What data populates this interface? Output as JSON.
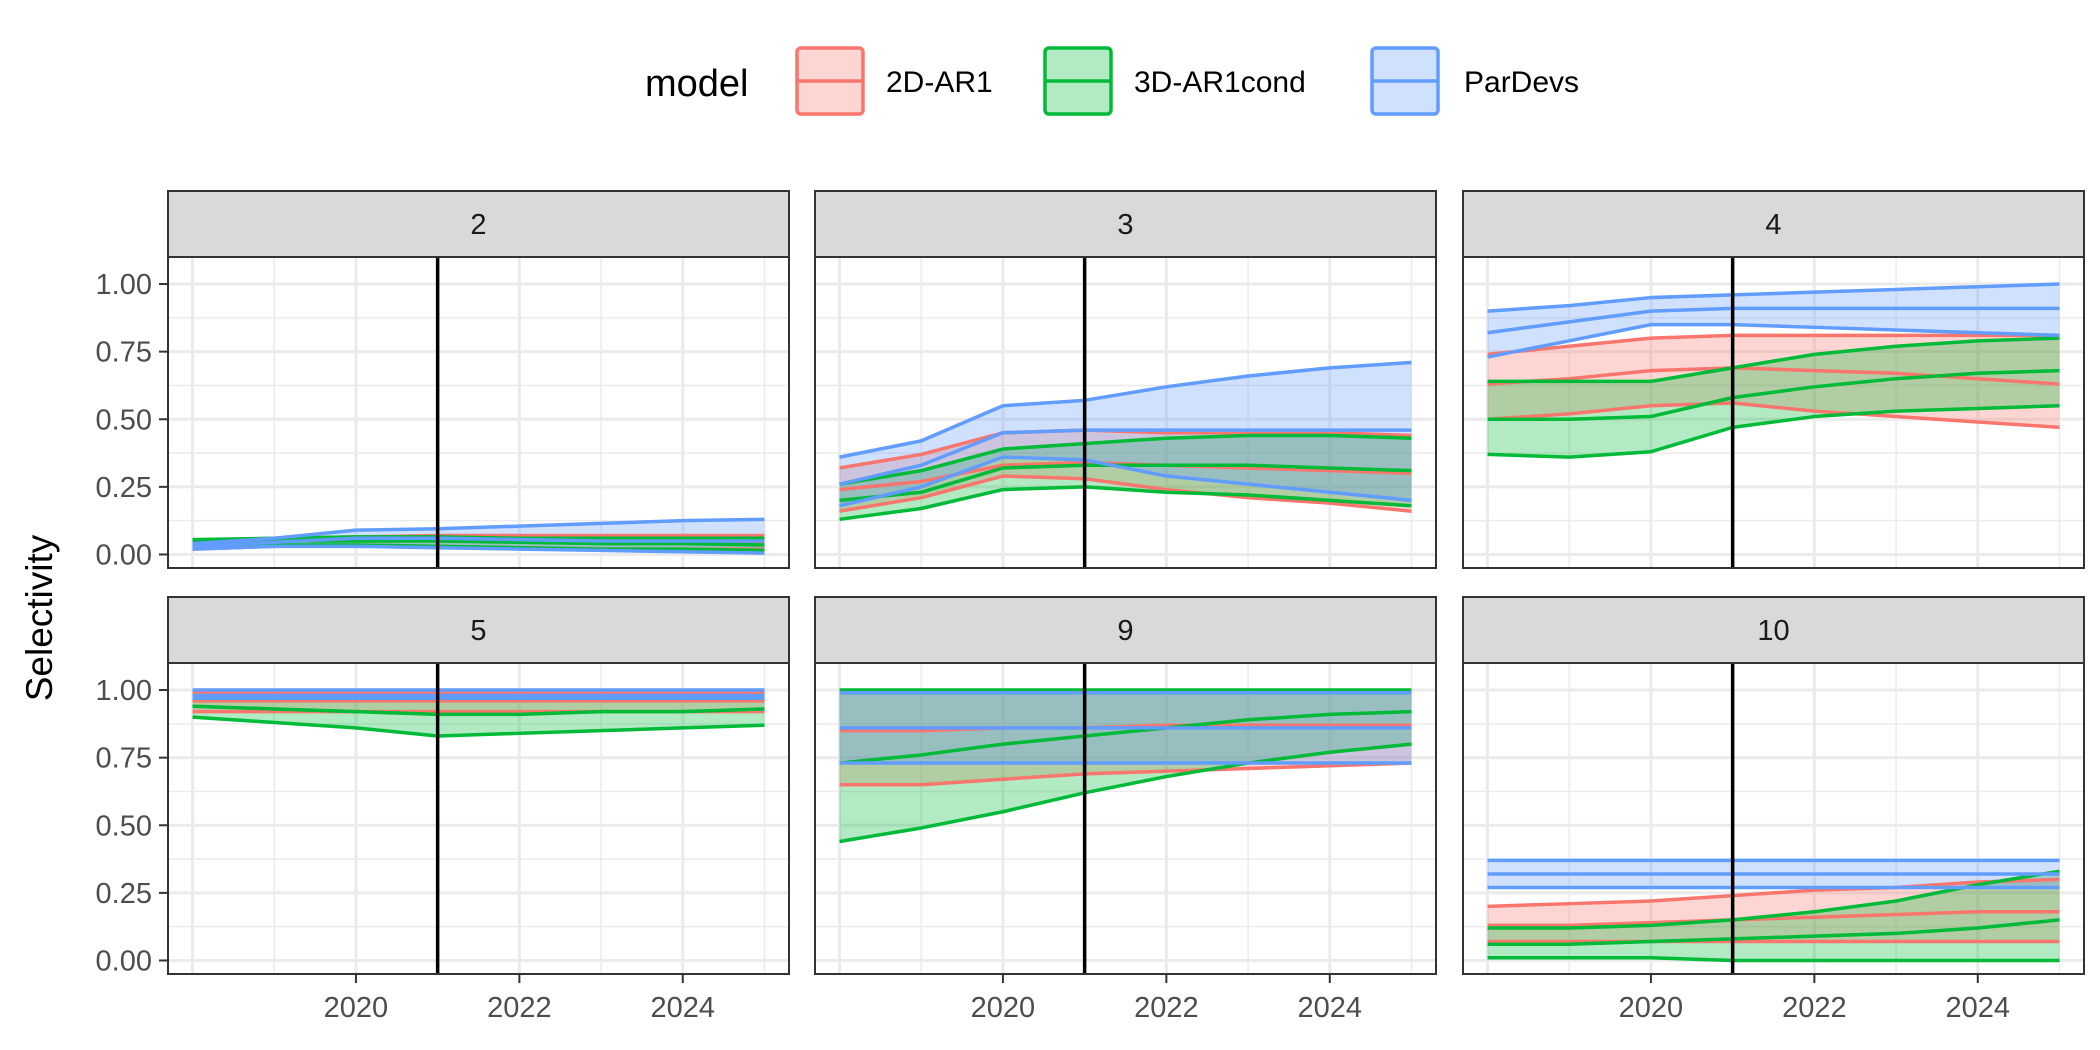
{
  "chart_data": {
    "type": "area",
    "ylabel": "Selectivity",
    "xlabel": "",
    "x": [
      2018,
      2019,
      2020,
      2021,
      2022,
      2023,
      2024,
      2025
    ],
    "xlim": [
      2017.7,
      2025.3
    ],
    "ylim": [
      -0.05,
      1.1
    ],
    "yticks": [
      0.0,
      0.25,
      0.5,
      0.75,
      1.0
    ],
    "ytick_labels": [
      "0.00",
      "0.25",
      "0.50",
      "0.75",
      "1.00"
    ],
    "xticks": [
      2020,
      2022,
      2024
    ],
    "xtick_labels": [
      "2020",
      "2022",
      "2024"
    ],
    "vline_x": 2021,
    "legend": {
      "title": "model",
      "position": "top",
      "entries": [
        {
          "name": "2D-AR1",
          "color": "#F8766D"
        },
        {
          "name": "3D-AR1cond",
          "color": "#00BA38"
        },
        {
          "name": "ParDevs",
          "color": "#619CFF"
        }
      ]
    },
    "panels": [
      {
        "label": "2",
        "series": [
          {
            "model": "2D-AR1",
            "mid": [
              0.04,
              0.05,
              0.055,
              0.055,
              0.05,
              0.05,
              0.045,
              0.045
            ],
            "lower": [
              0.02,
              0.03,
              0.035,
              0.03,
              0.025,
              0.02,
              0.02,
              0.02
            ],
            "upper": [
              0.05,
              0.06,
              0.065,
              0.07,
              0.07,
              0.07,
              0.07,
              0.07
            ]
          },
          {
            "model": "3D-AR1cond",
            "mid": [
              0.045,
              0.05,
              0.05,
              0.05,
              0.045,
              0.04,
              0.04,
              0.035
            ],
            "lower": [
              0.035,
              0.035,
              0.035,
              0.03,
              0.025,
              0.02,
              0.02,
              0.015
            ],
            "upper": [
              0.055,
              0.06,
              0.065,
              0.065,
              0.06,
              0.06,
              0.06,
              0.06
            ]
          },
          {
            "model": "ParDevs",
            "mid": [
              0.03,
              0.045,
              0.06,
              0.06,
              0.055,
              0.05,
              0.05,
              0.05
            ],
            "lower": [
              0.02,
              0.03,
              0.03,
              0.025,
              0.02,
              0.015,
              0.01,
              0.005
            ],
            "upper": [
              0.04,
              0.06,
              0.09,
              0.095,
              0.105,
              0.115,
              0.125,
              0.13
            ]
          }
        ]
      },
      {
        "label": "3",
        "series": [
          {
            "model": "2D-AR1",
            "mid": [
              0.24,
              0.27,
              0.33,
              0.34,
              0.33,
              0.32,
              0.31,
              0.3
            ],
            "lower": [
              0.16,
              0.21,
              0.29,
              0.28,
              0.24,
              0.21,
              0.19,
              0.16
            ],
            "upper": [
              0.32,
              0.37,
              0.45,
              0.46,
              0.45,
              0.45,
              0.45,
              0.44
            ]
          },
          {
            "model": "3D-AR1cond",
            "mid": [
              0.2,
              0.23,
              0.32,
              0.33,
              0.33,
              0.33,
              0.32,
              0.31
            ],
            "lower": [
              0.13,
              0.17,
              0.24,
              0.25,
              0.23,
              0.22,
              0.2,
              0.18
            ],
            "upper": [
              0.26,
              0.31,
              0.39,
              0.41,
              0.43,
              0.44,
              0.44,
              0.43
            ]
          },
          {
            "model": "ParDevs",
            "mid": [
              0.26,
              0.33,
              0.45,
              0.46,
              0.46,
              0.46,
              0.46,
              0.46
            ],
            "lower": [
              0.18,
              0.25,
              0.36,
              0.35,
              0.29,
              0.26,
              0.23,
              0.2
            ],
            "upper": [
              0.36,
              0.42,
              0.55,
              0.57,
              0.62,
              0.66,
              0.69,
              0.71
            ]
          }
        ]
      },
      {
        "label": "4",
        "series": [
          {
            "model": "2D-AR1",
            "mid": [
              0.63,
              0.65,
              0.68,
              0.69,
              0.68,
              0.67,
              0.65,
              0.63
            ],
            "lower": [
              0.5,
              0.52,
              0.55,
              0.56,
              0.53,
              0.51,
              0.49,
              0.47
            ],
            "upper": [
              0.74,
              0.77,
              0.8,
              0.81,
              0.81,
              0.81,
              0.81,
              0.81
            ]
          },
          {
            "model": "3D-AR1cond",
            "mid": [
              0.5,
              0.5,
              0.51,
              0.58,
              0.62,
              0.65,
              0.67,
              0.68
            ],
            "lower": [
              0.37,
              0.36,
              0.38,
              0.47,
              0.51,
              0.53,
              0.54,
              0.55
            ],
            "upper": [
              0.64,
              0.64,
              0.64,
              0.69,
              0.74,
              0.77,
              0.79,
              0.8
            ]
          },
          {
            "model": "ParDevs",
            "mid": [
              0.82,
              0.86,
              0.9,
              0.91,
              0.91,
              0.91,
              0.91,
              0.91
            ],
            "lower": [
              0.73,
              0.79,
              0.85,
              0.85,
              0.84,
              0.83,
              0.82,
              0.81
            ],
            "upper": [
              0.9,
              0.92,
              0.95,
              0.96,
              0.97,
              0.98,
              0.99,
              1.0
            ]
          }
        ]
      },
      {
        "label": "5",
        "series": [
          {
            "model": "2D-AR1",
            "mid": [
              0.96,
              0.96,
              0.96,
              0.96,
              0.96,
              0.96,
              0.96,
              0.96
            ],
            "lower": [
              0.92,
              0.92,
              0.92,
              0.92,
              0.92,
              0.92,
              0.92,
              0.92
            ],
            "upper": [
              0.99,
              0.99,
              0.99,
              0.99,
              0.99,
              0.99,
              0.99,
              0.99
            ]
          },
          {
            "model": "3D-AR1cond",
            "mid": [
              0.94,
              0.93,
              0.92,
              0.91,
              0.91,
              0.92,
              0.92,
              0.93
            ],
            "lower": [
              0.9,
              0.88,
              0.86,
              0.83,
              0.84,
              0.85,
              0.86,
              0.87
            ],
            "upper": [
              0.97,
              0.97,
              0.97,
              0.97,
              0.97,
              0.97,
              0.97,
              0.97
            ]
          },
          {
            "model": "ParDevs",
            "mid": [
              0.98,
              0.98,
              0.98,
              0.98,
              0.98,
              0.98,
              0.98,
              0.98
            ],
            "lower": [
              0.97,
              0.97,
              0.97,
              0.97,
              0.97,
              0.97,
              0.97,
              0.97
            ],
            "upper": [
              1.0,
              1.0,
              1.0,
              1.0,
              1.0,
              1.0,
              1.0,
              1.0
            ]
          }
        ]
      },
      {
        "label": "9",
        "series": [
          {
            "model": "2D-AR1",
            "mid": [
              0.85,
              0.85,
              0.86,
              0.86,
              0.87,
              0.87,
              0.87,
              0.87
            ],
            "lower": [
              0.65,
              0.65,
              0.67,
              0.69,
              0.7,
              0.71,
              0.72,
              0.73
            ],
            "upper": [
              0.99,
              0.99,
              0.99,
              0.99,
              0.99,
              0.99,
              0.99,
              0.99
            ]
          },
          {
            "model": "3D-AR1cond",
            "mid": [
              0.73,
              0.76,
              0.8,
              0.83,
              0.86,
              0.89,
              0.91,
              0.92
            ],
            "lower": [
              0.44,
              0.49,
              0.55,
              0.62,
              0.68,
              0.73,
              0.77,
              0.8
            ],
            "upper": [
              1.0,
              1.0,
              1.0,
              1.0,
              1.0,
              1.0,
              1.0,
              1.0
            ]
          },
          {
            "model": "ParDevs",
            "mid": [
              0.86,
              0.86,
              0.86,
              0.86,
              0.86,
              0.86,
              0.86,
              0.86
            ],
            "lower": [
              0.73,
              0.73,
              0.73,
              0.73,
              0.73,
              0.73,
              0.73,
              0.73
            ],
            "upper": [
              0.99,
              0.99,
              0.99,
              0.99,
              0.99,
              0.99,
              0.99,
              0.99
            ]
          }
        ]
      },
      {
        "label": "10",
        "series": [
          {
            "model": "2D-AR1",
            "mid": [
              0.13,
              0.13,
              0.14,
              0.15,
              0.16,
              0.17,
              0.18,
              0.18
            ],
            "lower": [
              0.07,
              0.07,
              0.07,
              0.07,
              0.07,
              0.07,
              0.07,
              0.07
            ],
            "upper": [
              0.2,
              0.21,
              0.22,
              0.24,
              0.26,
              0.27,
              0.29,
              0.3
            ]
          },
          {
            "model": "3D-AR1cond",
            "mid": [
              0.06,
              0.06,
              0.07,
              0.08,
              0.09,
              0.1,
              0.12,
              0.15
            ],
            "lower": [
              0.01,
              0.01,
              0.01,
              0.0,
              0.0,
              0.0,
              0.0,
              0.0
            ],
            "upper": [
              0.12,
              0.12,
              0.13,
              0.15,
              0.18,
              0.22,
              0.28,
              0.33
            ]
          },
          {
            "model": "ParDevs",
            "mid": [
              0.32,
              0.32,
              0.32,
              0.32,
              0.32,
              0.32,
              0.32,
              0.32
            ],
            "lower": [
              0.27,
              0.27,
              0.27,
              0.27,
              0.27,
              0.27,
              0.27,
              0.27
            ],
            "upper": [
              0.37,
              0.37,
              0.37,
              0.37,
              0.37,
              0.37,
              0.37,
              0.37
            ]
          }
        ]
      }
    ]
  }
}
